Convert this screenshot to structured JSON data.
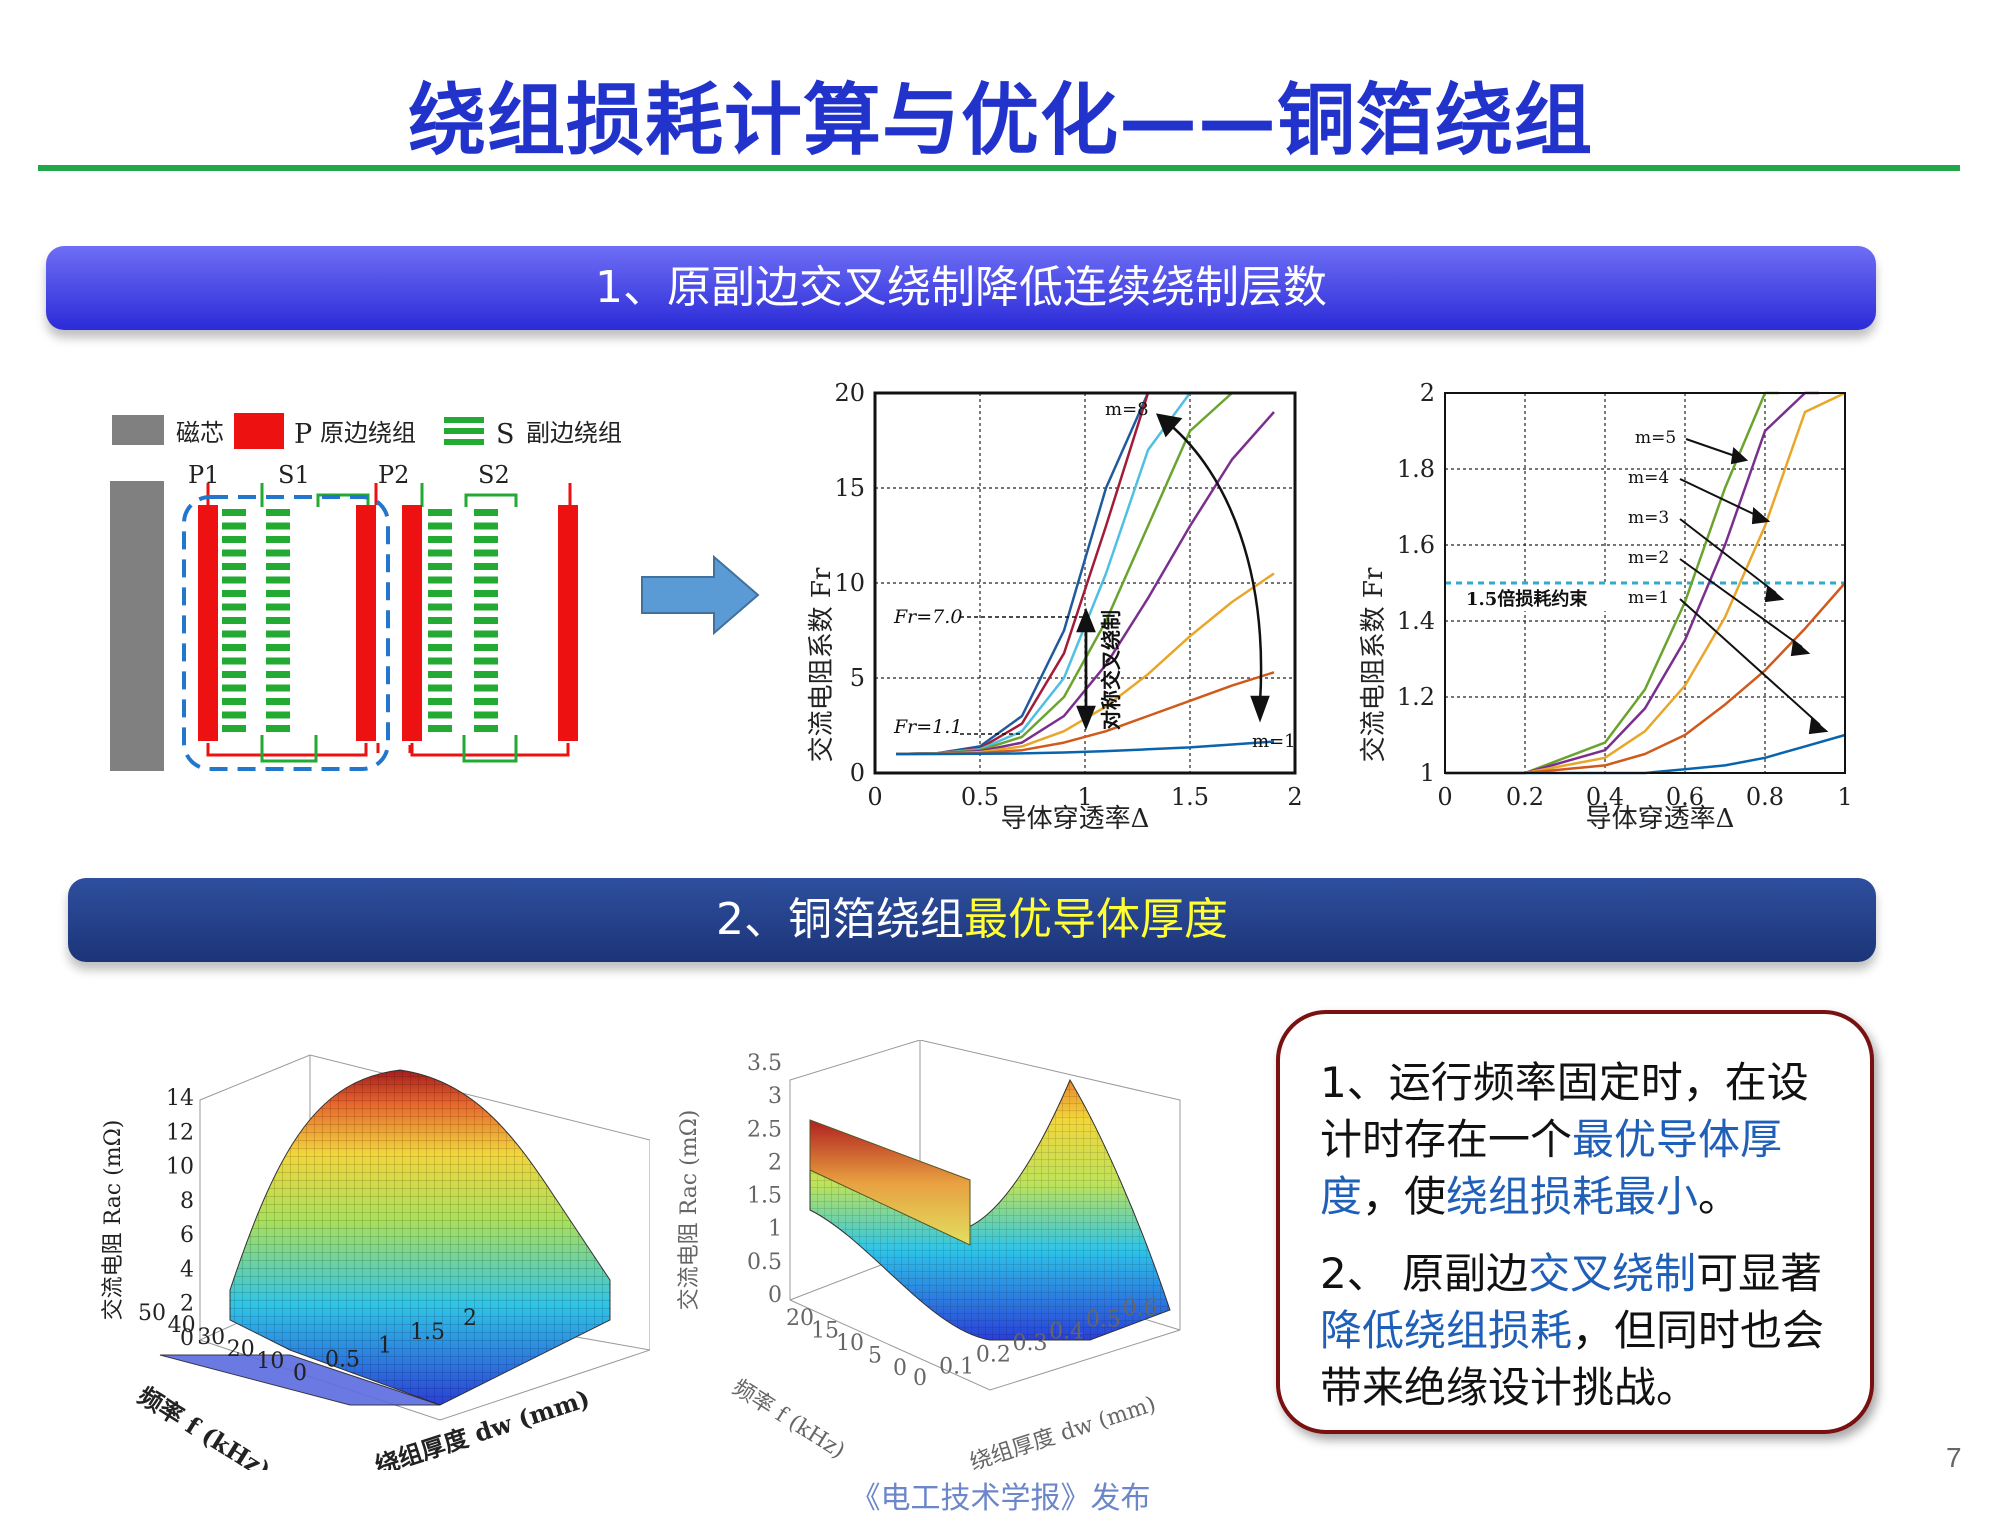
{
  "title": "绕组损耗计算与优化——铜箔绕组",
  "section1": {
    "label": "1、原副边交叉绕制降低连续绕制层数"
  },
  "section2": {
    "label_prefix": "2、铜箔绕组",
    "label_highlight": "最优导体厚度"
  },
  "legend": {
    "core": "磁芯",
    "p_letter": "P",
    "primary": "原边绕组",
    "s_letter": "S",
    "secondary": "副边绕组"
  },
  "winding_labels": [
    "P1",
    "S1",
    "P2",
    "S2"
  ],
  "chart1": {
    "ylabel": "交流电阻系数 Fr",
    "xlabel": "导体穿透率Δ",
    "xticks": [
      "0",
      "0.5",
      "1",
      "1.5",
      "2"
    ],
    "yticks": [
      "0",
      "5",
      "10",
      "15",
      "20"
    ],
    "annotations": {
      "m_top": "m=8",
      "m_bottom": "m=1",
      "fr7": "Fr=7.0",
      "fr11": "Fr=1.1",
      "vertical": "对称交叉绕制"
    }
  },
  "chart2": {
    "ylabel": "交流电阻系数 Fr",
    "xlabel": "导体穿透率Δ",
    "xticks": [
      "0",
      "0.2",
      "0.4",
      "0.6",
      "0.8",
      "1"
    ],
    "yticks": [
      "1",
      "1.2",
      "1.4",
      "1.6",
      "1.8",
      "2"
    ],
    "constraint": "1.5倍损耗约束",
    "m_labels": [
      "m=5",
      "m=4",
      "m=3",
      "m=2",
      "m=1"
    ]
  },
  "plot3d_1": {
    "zlabel": "交流电阻 Rac (mΩ)",
    "xlabel": "绕组厚度 dw (mm)",
    "ylabel": "频率 f (kHz)",
    "zticks": [
      "0",
      "2",
      "4",
      "6",
      "8",
      "10",
      "12",
      "14"
    ],
    "yticks": [
      "0",
      "10",
      "20",
      "30",
      "40",
      "50"
    ],
    "xticks": [
      "0",
      "0.5",
      "1",
      "1.5",
      "2"
    ]
  },
  "plot3d_2": {
    "zlabel": "交流电阻 Rac (mΩ)",
    "xlabel": "绕组厚度 dw (mm)",
    "ylabel": "频率 f (kHz)",
    "zticks": [
      "0",
      "0.5",
      "1",
      "1.5",
      "2",
      "2.5",
      "3",
      "3.5"
    ],
    "yticks": [
      "0",
      "5",
      "10",
      "15",
      "20"
    ],
    "xticks": [
      "0",
      "0.1",
      "0.2",
      "0.3",
      "0.4",
      "0.5",
      "0.6"
    ]
  },
  "note": {
    "p1_a": "1、运行频率固定时，在设计时存在一个",
    "p1_b": "最优导体厚度",
    "p1_c": "，使",
    "p1_d": "绕组损耗最小",
    "p1_e": "。",
    "p2_a": "2、 原副边",
    "p2_b": "交叉绕制",
    "p2_c": "可显著",
    "p2_d": "降低绕组损耗",
    "p2_e": "，但同时也会带来绝缘设计挑战。"
  },
  "footer": "《电工技术学报》发布",
  "page_number": "7",
  "chart_data": [
    {
      "type": "line",
      "title": "",
      "xlabel": "导体穿透率Δ",
      "ylabel": "交流电阻系数 Fr",
      "xlim": [
        0,
        2
      ],
      "ylim": [
        0,
        20
      ],
      "grid": true,
      "x": [
        0.1,
        0.3,
        0.5,
        0.7,
        0.9,
        1.1,
        1.3,
        1.5,
        1.7,
        1.9
      ],
      "series": [
        {
          "name": "m=8",
          "values": [
            1.0,
            1.05,
            1.4,
            3.0,
            7.5,
            15.0,
            20.0,
            null,
            null,
            null
          ]
        },
        {
          "name": "m=7",
          "values": [
            1.0,
            1.05,
            1.3,
            2.6,
            6.3,
            13.0,
            20.0,
            null,
            null,
            null
          ]
        },
        {
          "name": "m=6",
          "values": [
            1.0,
            1.04,
            1.25,
            2.2,
            5.0,
            10.5,
            17.0,
            20.0,
            null,
            null
          ]
        },
        {
          "name": "m=5",
          "values": [
            1.0,
            1.03,
            1.2,
            1.9,
            4.0,
            8.0,
            13.0,
            18.0,
            20.0,
            null
          ]
        },
        {
          "name": "m=4",
          "values": [
            1.0,
            1.02,
            1.15,
            1.6,
            3.0,
            5.7,
            9.2,
            13.0,
            16.5,
            19.0
          ]
        },
        {
          "name": "m=3",
          "values": [
            1.0,
            1.01,
            1.1,
            1.4,
            2.2,
            3.5,
            5.2,
            7.2,
            9.0,
            10.5
          ]
        },
        {
          "name": "m=2",
          "values": [
            1.0,
            1.01,
            1.05,
            1.2,
            1.6,
            2.2,
            3.0,
            3.8,
            4.6,
            5.3
          ]
        },
        {
          "name": "m=1",
          "values": [
            1.0,
            1.0,
            1.01,
            1.03,
            1.08,
            1.15,
            1.25,
            1.35,
            1.5,
            1.65
          ]
        }
      ]
    },
    {
      "type": "line",
      "title": "",
      "xlabel": "导体穿透率Δ",
      "ylabel": "交流电阻系数 Fr",
      "xlim": [
        0,
        1
      ],
      "ylim": [
        1,
        2
      ],
      "grid": true,
      "reference_line": {
        "y": 1.5,
        "label": "1.5倍损耗约束"
      },
      "x": [
        0.0,
        0.2,
        0.4,
        0.5,
        0.6,
        0.7,
        0.8,
        0.9,
        1.0
      ],
      "series": [
        {
          "name": "m=5",
          "values": [
            1.0,
            1.0,
            1.08,
            1.22,
            1.45,
            1.75,
            2.0,
            null,
            null
          ]
        },
        {
          "name": "m=4",
          "values": [
            1.0,
            1.0,
            1.06,
            1.17,
            1.35,
            1.6,
            1.9,
            2.0,
            null
          ]
        },
        {
          "name": "m=3",
          "values": [
            1.0,
            1.0,
            1.04,
            1.11,
            1.23,
            1.41,
            1.65,
            1.95,
            2.0
          ]
        },
        {
          "name": "m=2",
          "values": [
            1.0,
            1.0,
            1.02,
            1.05,
            1.1,
            1.18,
            1.27,
            1.38,
            1.5
          ]
        },
        {
          "name": "m=1",
          "values": [
            1.0,
            1.0,
            1.0,
            1.0,
            1.01,
            1.02,
            1.04,
            1.07,
            1.1
          ]
        }
      ]
    }
  ]
}
